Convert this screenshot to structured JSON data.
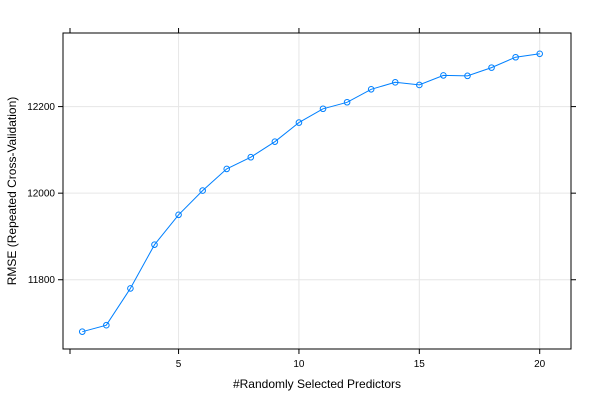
{
  "chart_data": {
    "type": "line",
    "title": "",
    "xlabel": "#Randomly Selected Predictors",
    "ylabel": "RMSE (Repeated Cross-Validation)",
    "xlim": [
      0.2,
      21.3
    ],
    "ylim": [
      11640,
      12370
    ],
    "x_ticks": [
      5,
      10,
      15,
      20
    ],
    "y_ticks": [
      11800,
      12000,
      12200
    ],
    "grid": true,
    "legend": "none",
    "colors": {
      "series": "#0080ff",
      "grid": "#e6e6e6",
      "frame": "#000000"
    },
    "series": [
      {
        "x": [
          1,
          2,
          3,
          4,
          5,
          6,
          7,
          8,
          9,
          10,
          11,
          12,
          13,
          14,
          15,
          16,
          17,
          18,
          19,
          20
        ],
        "values": [
          11680,
          11695,
          11780,
          11881,
          11950,
          12006,
          12056,
          12083,
          12119,
          12163,
          12195,
          12210,
          12240,
          12256,
          12250,
          12272,
          12271,
          12290,
          12314,
          12322
        ]
      }
    ]
  }
}
